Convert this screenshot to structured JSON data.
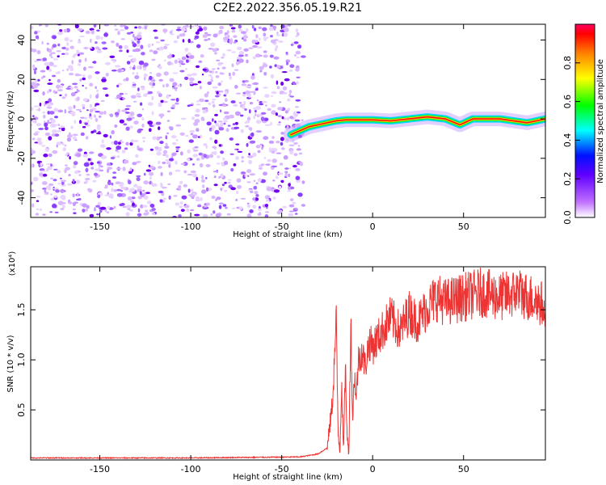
{
  "title": "C2E2.2022.356.05.19.R21",
  "chart_data": [
    {
      "type": "heatmap",
      "xlabel": "Height of straight line (km)",
      "ylabel": "Frequency (Hz)",
      "xlim": [
        -188,
        95
      ],
      "ylim": [
        -50,
        48
      ],
      "x_ticks": [
        -150,
        -100,
        -50,
        0,
        50
      ],
      "y_ticks": [
        -40,
        -20,
        0,
        20,
        40
      ],
      "colorbar": {
        "label": "Normalized spectral amplitude",
        "range": [
          0,
          1
        ],
        "ticks": [
          0.0,
          0.2,
          0.4,
          0.6,
          0.8
        ],
        "colormap": [
          "#ffffff",
          "#7a00ff",
          "#0000ff",
          "#00ffff",
          "#00ff00",
          "#ffff00",
          "#ff8000",
          "#ff0000",
          "#ff0060"
        ]
      },
      "noise_region_x": [
        -188,
        -38
      ],
      "signal_track": [
        {
          "x": -45,
          "y": -8
        },
        {
          "x": -40,
          "y": -6
        },
        {
          "x": -35,
          "y": -4
        },
        {
          "x": -30,
          "y": -3
        },
        {
          "x": -25,
          "y": -2
        },
        {
          "x": -20,
          "y": -1
        },
        {
          "x": -15,
          "y": -0.5
        },
        {
          "x": 0,
          "y": -0.5
        },
        {
          "x": 10,
          "y": -1
        },
        {
          "x": 20,
          "y": 0
        },
        {
          "x": 30,
          "y": 1
        },
        {
          "x": 40,
          "y": 0
        },
        {
          "x": 48,
          "y": -3
        },
        {
          "x": 55,
          "y": 0
        },
        {
          "x": 70,
          "y": 0
        },
        {
          "x": 85,
          "y": -2
        },
        {
          "x": 95,
          "y": 0
        }
      ]
    },
    {
      "type": "line",
      "xlabel": "Height of straight line (km)",
      "ylabel": "SNR (10 * v/v)",
      "y_multiplier": "(x10⁴)",
      "xlim": [
        -188,
        95
      ],
      "ylim": [
        0,
        1.93
      ],
      "x_ticks": [
        -150,
        -100,
        -50,
        0,
        50
      ],
      "y_ticks": [
        0.5,
        1.0,
        1.5
      ],
      "series": [
        {
          "color": "#ee3333",
          "x": [
            -188,
            -100,
            -40,
            -30,
            -25,
            -22,
            -20,
            -19,
            -18,
            -17,
            -16,
            -15,
            -14,
            -13,
            -12,
            -11,
            -10,
            -9,
            -8,
            -6,
            -4,
            -2,
            0,
            5,
            10,
            15,
            20,
            25,
            30,
            35,
            40,
            50,
            60,
            70,
            80,
            90,
            95
          ],
          "y": [
            0.02,
            0.02,
            0.03,
            0.06,
            0.12,
            0.6,
            1.42,
            0.3,
            0.1,
            0.8,
            0.05,
            1.0,
            0.2,
            0.1,
            1.45,
            0.4,
            0.9,
            0.6,
            1.0,
            1.1,
            0.95,
            1.2,
            1.15,
            1.3,
            1.45,
            1.3,
            1.5,
            1.4,
            1.55,
            1.65,
            1.6,
            1.65,
            1.7,
            1.65,
            1.7,
            1.62,
            1.55
          ]
        }
      ]
    }
  ]
}
